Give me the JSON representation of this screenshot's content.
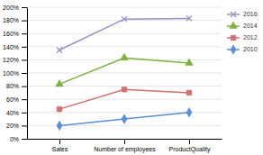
{
  "chart_data": {
    "type": "line",
    "categories": [
      "Sales",
      "Number of employees",
      "ProductQuality"
    ],
    "series": [
      {
        "name": "2016",
        "color": "#9B8EC4",
        "marker": "x",
        "values": [
          135,
          182,
          183
        ]
      },
      {
        "name": "2014",
        "color": "#7DB040",
        "marker": "triangle",
        "values": [
          83,
          123,
          115
        ]
      },
      {
        "name": "2012",
        "color": "#D07070",
        "marker": "square",
        "values": [
          45,
          75,
          70
        ]
      },
      {
        "name": "2010",
        "color": "#5B8ED4",
        "marker": "diamond",
        "values": [
          20,
          30,
          40
        ]
      }
    ],
    "ylim": [
      0,
      200
    ],
    "yticks": [
      {
        "value": 0,
        "label": "0%"
      },
      {
        "value": 20,
        "label": "20%"
      },
      {
        "value": 40,
        "label": "40%"
      },
      {
        "value": 60,
        "label": "60%"
      },
      {
        "value": 80,
        "label": "80%"
      },
      {
        "value": 100,
        "label": "100%"
      },
      {
        "value": 120,
        "label": "120%"
      },
      {
        "value": 140,
        "label": "140%"
      },
      {
        "value": 160,
        "label": "160%"
      },
      {
        "value": 180,
        "label": "180%"
      },
      {
        "value": 200,
        "label": "200%"
      }
    ],
    "grid": true,
    "legend": "right"
  }
}
